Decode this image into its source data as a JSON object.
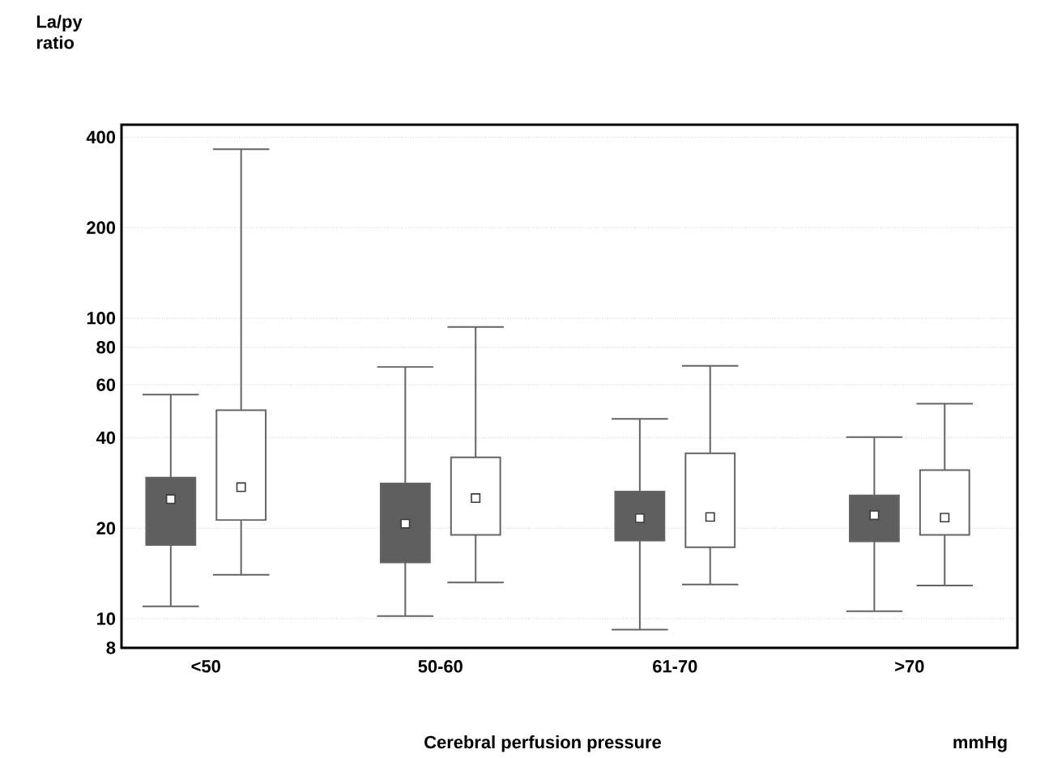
{
  "chart_data": {
    "type": "box",
    "xlabel": "Cerebral perfusion pressure",
    "ylabel": "La/py ratio",
    "annotations": [
      "mmHg"
    ],
    "categories": [
      "<50",
      "50-60",
      "61-70",
      ">70"
    ],
    "series": [
      {
        "color": "#5f5f5f",
        "boxes": [
          {
            "low": 11.0,
            "q1": 17.6,
            "median": 25,
            "q3": 29.5,
            "high": 55.7
          },
          {
            "low": 10.2,
            "q1": 15.4,
            "median": 20.7,
            "q3": 28.2,
            "high": 68.8
          },
          {
            "low": 9.2,
            "q1": 18.2,
            "median": 21.6,
            "q3": 26.5,
            "high": 46.2
          },
          {
            "low": 10.6,
            "q1": 18.1,
            "median": 22.1,
            "q3": 25.7,
            "high": 40.2
          }
        ]
      },
      {
        "color": "#ffffff",
        "boxes": [
          {
            "low": 14.0,
            "q1": 21.3,
            "median": 27.4,
            "q3": 49.4,
            "high": 365
          },
          {
            "low": 13.2,
            "q1": 19.0,
            "median": 25.2,
            "q3": 34.4,
            "high": 93.5
          },
          {
            "low": 13.0,
            "q1": 17.3,
            "median": 21.8,
            "q3": 35.5,
            "high": 69.4
          },
          {
            "low": 12.9,
            "q1": 19.0,
            "median": 21.7,
            "q3": 31.2,
            "high": 51.9
          }
        ]
      }
    ],
    "ylim": [
      8,
      440
    ],
    "yticks": [
      8,
      10,
      20,
      40,
      60,
      80,
      100,
      200,
      400
    ],
    "log": true,
    "grid": "y",
    "marker": "square"
  }
}
